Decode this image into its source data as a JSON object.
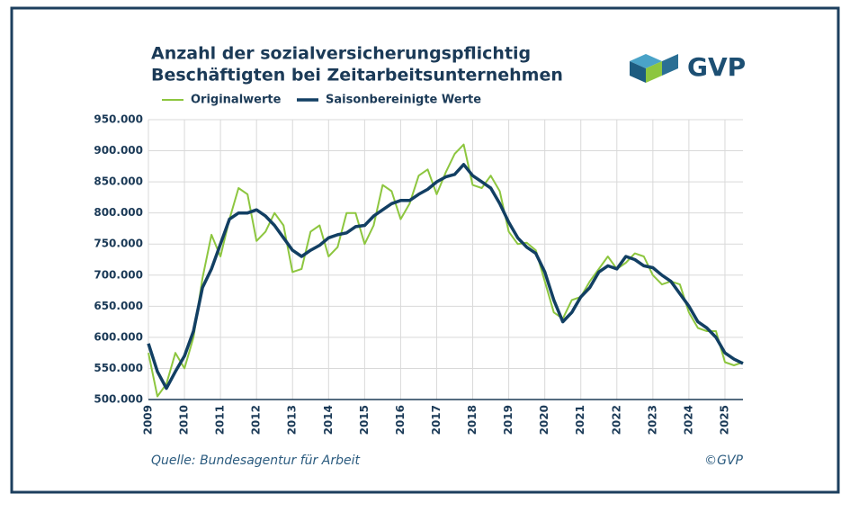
{
  "chart_data": {
    "type": "line",
    "title": [
      "Anzahl der sozialversicherungspflichtig",
      "Beschäftigten bei Zeitarbeitsunternehmen"
    ],
    "logo": "GVP",
    "source": "Quelle: Bundesagentur für Arbeit",
    "copyright": "©GVP",
    "x": [
      2009,
      2009.25,
      2009.5,
      2009.75,
      2010,
      2010.25,
      2010.5,
      2010.75,
      2011,
      2011.25,
      2011.5,
      2011.75,
      2012,
      2012.25,
      2012.5,
      2012.75,
      2013,
      2013.25,
      2013.5,
      2013.75,
      2014,
      2014.25,
      2014.5,
      2014.75,
      2015,
      2015.25,
      2015.5,
      2015.75,
      2016,
      2016.25,
      2016.5,
      2016.75,
      2017,
      2017.25,
      2017.5,
      2017.75,
      2018,
      2018.25,
      2018.5,
      2018.75,
      2019,
      2019.25,
      2019.5,
      2019.75,
      2020,
      2020.25,
      2020.5,
      2020.75,
      2021,
      2021.25,
      2021.5,
      2021.75,
      2022,
      2022.25,
      2022.5,
      2022.75,
      2023,
      2023.25,
      2023.5,
      2023.75,
      2024,
      2024.25,
      2024.5,
      2024.75,
      2025,
      2025.25,
      2025.5
    ],
    "series": [
      {
        "name": "Originalwerte",
        "color": "#8dc63f",
        "width": 2,
        "values": [
          575000,
          505000,
          525000,
          575000,
          550000,
          600000,
          695000,
          765000,
          730000,
          790000,
          840000,
          830000,
          755000,
          770000,
          800000,
          780000,
          705000,
          710000,
          770000,
          780000,
          730000,
          745000,
          800000,
          800000,
          750000,
          780000,
          845000,
          835000,
          790000,
          815000,
          860000,
          870000,
          830000,
          865000,
          895000,
          910000,
          845000,
          840000,
          860000,
          835000,
          770000,
          750000,
          752000,
          740000,
          690000,
          640000,
          630000,
          660000,
          665000,
          690000,
          710000,
          730000,
          710000,
          720000,
          735000,
          730000,
          700000,
          685000,
          690000,
          685000,
          640000,
          615000,
          610000,
          610000,
          560000,
          555000,
          560000
        ]
      },
      {
        "name": "Saisonbereinigte Werte",
        "color": "#123f63",
        "width": 3.5,
        "values": [
          590000,
          545000,
          518000,
          545000,
          570000,
          610000,
          680000,
          710000,
          750000,
          790000,
          800000,
          800000,
          805000,
          795000,
          780000,
          760000,
          740000,
          730000,
          740000,
          748000,
          760000,
          765000,
          768000,
          778000,
          780000,
          795000,
          805000,
          815000,
          820000,
          820000,
          830000,
          838000,
          850000,
          858000,
          862000,
          878000,
          860000,
          850000,
          840000,
          815000,
          785000,
          760000,
          745000,
          735000,
          705000,
          660000,
          625000,
          640000,
          665000,
          680000,
          705000,
          715000,
          710000,
          730000,
          725000,
          715000,
          712000,
          700000,
          690000,
          670000,
          650000,
          625000,
          615000,
          600000,
          575000,
          565000,
          558000
        ]
      }
    ],
    "xlim": [
      2009,
      2025.5
    ],
    "xticks": [
      2009,
      2010,
      2011,
      2012,
      2013,
      2014,
      2015,
      2016,
      2017,
      2018,
      2019,
      2020,
      2021,
      2022,
      2023,
      2024,
      2025
    ],
    "ylim": [
      500000,
      950000
    ],
    "yticks": [
      {
        "value": 500000,
        "label": "500.000"
      },
      {
        "value": 550000,
        "label": "550.000"
      },
      {
        "value": 600000,
        "label": "600.000"
      },
      {
        "value": 650000,
        "label": "650.000"
      },
      {
        "value": 700000,
        "label": "700.000"
      },
      {
        "value": 750000,
        "label": "750.000"
      },
      {
        "value": 800000,
        "label": "800.000"
      },
      {
        "value": 850000,
        "label": "850.000"
      },
      {
        "value": 900000,
        "label": "900.000"
      },
      {
        "value": 950000,
        "label": "950.000"
      }
    ],
    "grid": true
  }
}
